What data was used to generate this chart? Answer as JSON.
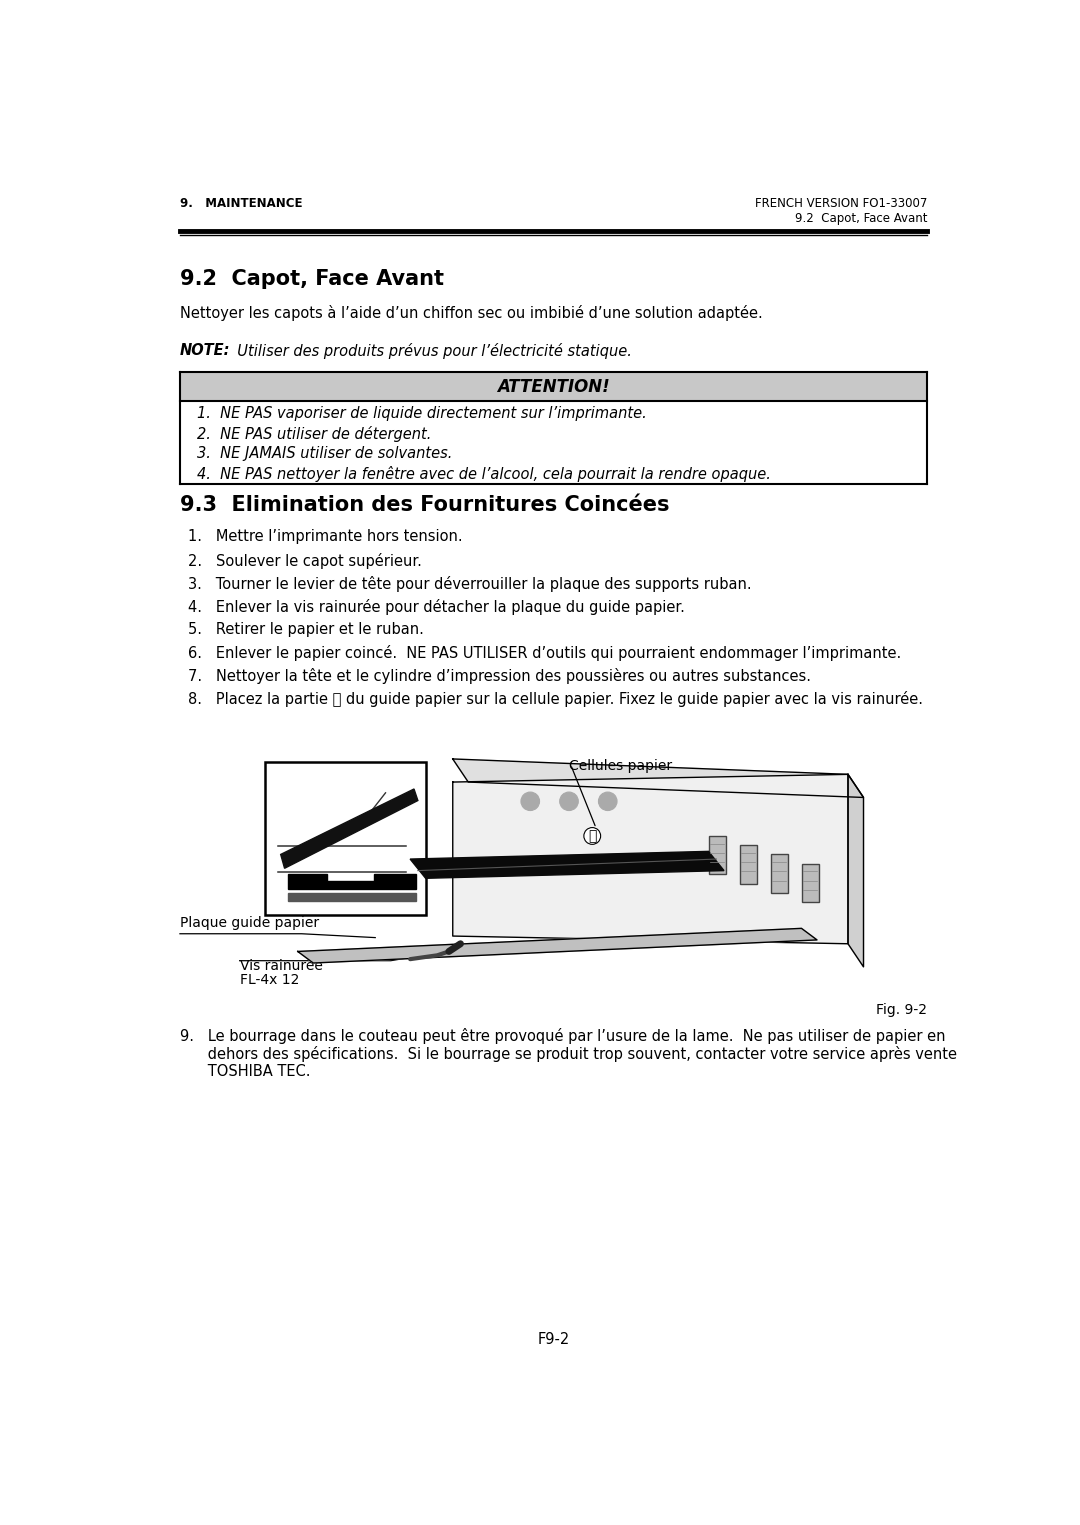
{
  "page_bg": "#ffffff",
  "header_left": "9.   MAINTENANCE",
  "header_right": "FRENCH VERSION FO1-33007",
  "header_sub_right": "9.2  Capot, Face Avant",
  "section_92_title": "9.2  Capot, Face Avant",
  "section_92_body": "Nettoyer les capots à l’aide d’un chiffon sec ou imbibié d’une solution adaptée.",
  "note_label": "NOTE:",
  "note_text": "  Utiliser des produits prévus pour l’électricité statique.",
  "attention_title": "ATTENTION!",
  "attention_bg": "#c8c8c8",
  "attention_items": [
    "1.  NE PAS vaporiser de liquide directement sur l’imprimante.",
    "2.  NE PAS utiliser de détergent.",
    "3.  NE JAMAIS utiliser de solvantes.",
    "4.  NE PAS nettoyer la fenêtre avec de l’alcool, cela pourrait la rendre opaque."
  ],
  "section_93_title": "9.3  Elimination des Fournitures Coincées",
  "section_93_items": [
    "1.   Mettre l’imprimante hors tension.",
    "2.   Soulever le capot supérieur.",
    "3.   Tourner le levier de tête pour déverrouiller la plaque des supports ruban.",
    "4.   Enlever la vis rainurée pour détacher la plaque du guide papier.",
    "5.   Retirer le papier et le ruban.",
    "6.   Enlever le papier coincé.  NE PAS UTILISER d’outils qui pourraient endommager l’imprimante.",
    "7.   Nettoyer la tête et le cylindre d’impression des poussières ou autres substances.",
    "8.   Placez la partie Ⓑ du guide papier sur la cellule papier. Fixez le guide papier avec la vis rainurée."
  ],
  "fig_label": "Fig. 9-2",
  "callout_cellules": "Cellules papier",
  "callout_plaque": "Plaque guide papier",
  "callout_vis_line1": "Vis rainurée",
  "callout_vis_line2": "FL-4x 12",
  "step9_lines": [
    "9.   Le bourrage dans le couteau peut être provoqué par l’usure de la lame.  Ne pas utiliser de papier en",
    "      dehors des spécifications.  Si le bourrage se produit trop souvent, contacter votre service après vente",
    "      TOSHIBA TEC."
  ],
  "footer_text": "F9-2",
  "ML": 58,
  "MR": 1022
}
